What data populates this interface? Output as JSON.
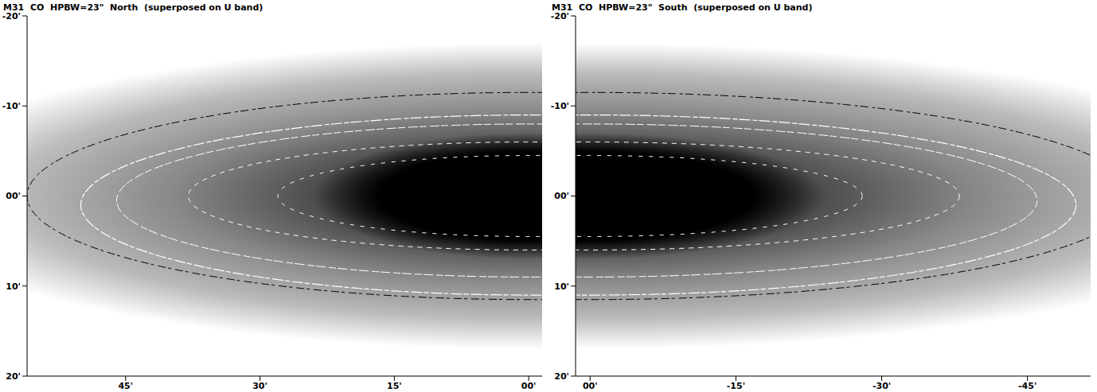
{
  "chart_data": [
    {
      "type": "image",
      "title": "M31  CO  HPBW=23\"  North  (superposed on U band)",
      "xlim": [
        56,
        -1.5
      ],
      "xticks": [
        {
          "value": 45,
          "label": "45'"
        },
        {
          "value": 30,
          "label": "30'"
        },
        {
          "value": 15,
          "label": "15'"
        },
        {
          "value": 0,
          "label": "00'"
        }
      ],
      "ylim": [
        20,
        -20
      ],
      "yticks": [
        {
          "value": -20,
          "label": "-20'"
        },
        {
          "value": -10,
          "label": "-10'"
        },
        {
          "value": 0,
          "label": "00'"
        },
        {
          "value": 10,
          "label": "10'"
        },
        {
          "value": 20,
          "label": "20'"
        }
      ]
    },
    {
      "type": "image",
      "title": "M31  CO  HPBW=23\"  South  (superposed on U band)",
      "xlim": [
        1.5,
        -51.5
      ],
      "xticks": [
        {
          "value": 0,
          "label": "00'"
        },
        {
          "value": -15,
          "label": "-15'"
        },
        {
          "value": -30,
          "label": "-30'"
        },
        {
          "value": -45,
          "label": "-45'"
        }
      ],
      "ylim": [
        20,
        -20
      ],
      "yticks": [
        {
          "value": -20,
          "label": "-20'"
        },
        {
          "value": -10,
          "label": "-10'"
        },
        {
          "value": 0,
          "label": "00'"
        },
        {
          "value": 10,
          "label": "10'"
        },
        {
          "value": 20,
          "label": "20'"
        }
      ]
    }
  ]
}
